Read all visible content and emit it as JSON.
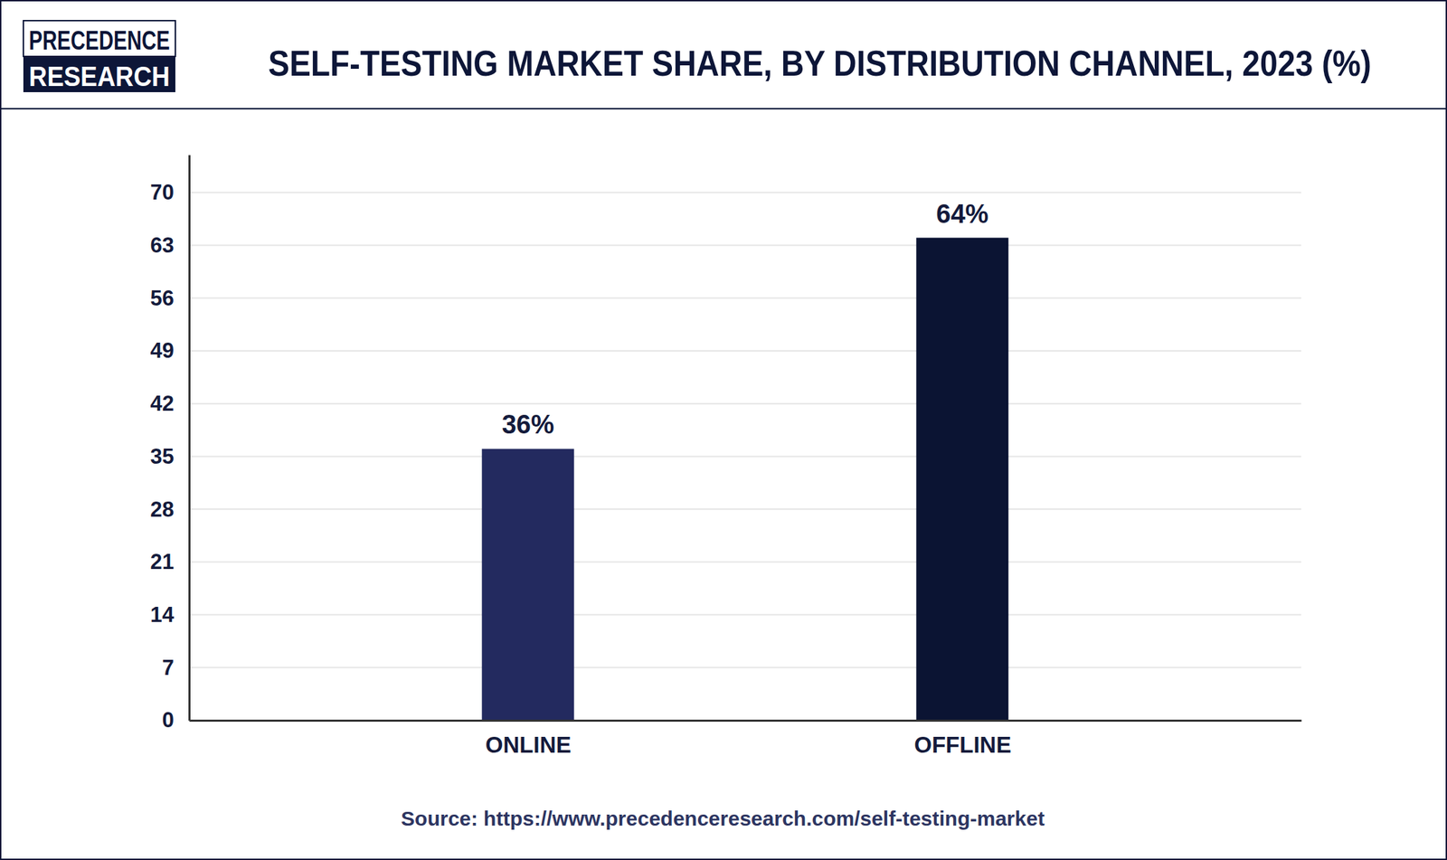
{
  "brand": [
    "PRECEDENCE",
    "RESEARCH"
  ],
  "chart_data": {
    "type": "bar",
    "title": "SELF-TESTING MARKET SHARE, BY DISTRIBUTION CHANNEL, 2023 (%)",
    "categories": [
      "ONLINE",
      "OFFLINE"
    ],
    "values": [
      36,
      64
    ],
    "value_labels": [
      "36%",
      "64%"
    ],
    "colors": [
      "#232a5f",
      "#0b1433"
    ],
    "ylim": [
      0,
      75
    ],
    "yticks": [
      0,
      7,
      14,
      21,
      28,
      35,
      42,
      49,
      56,
      63,
      70
    ],
    "grid": true,
    "data_labels": true,
    "source": "Source: https://www.precedenceresearch.com/self-testing-market"
  }
}
